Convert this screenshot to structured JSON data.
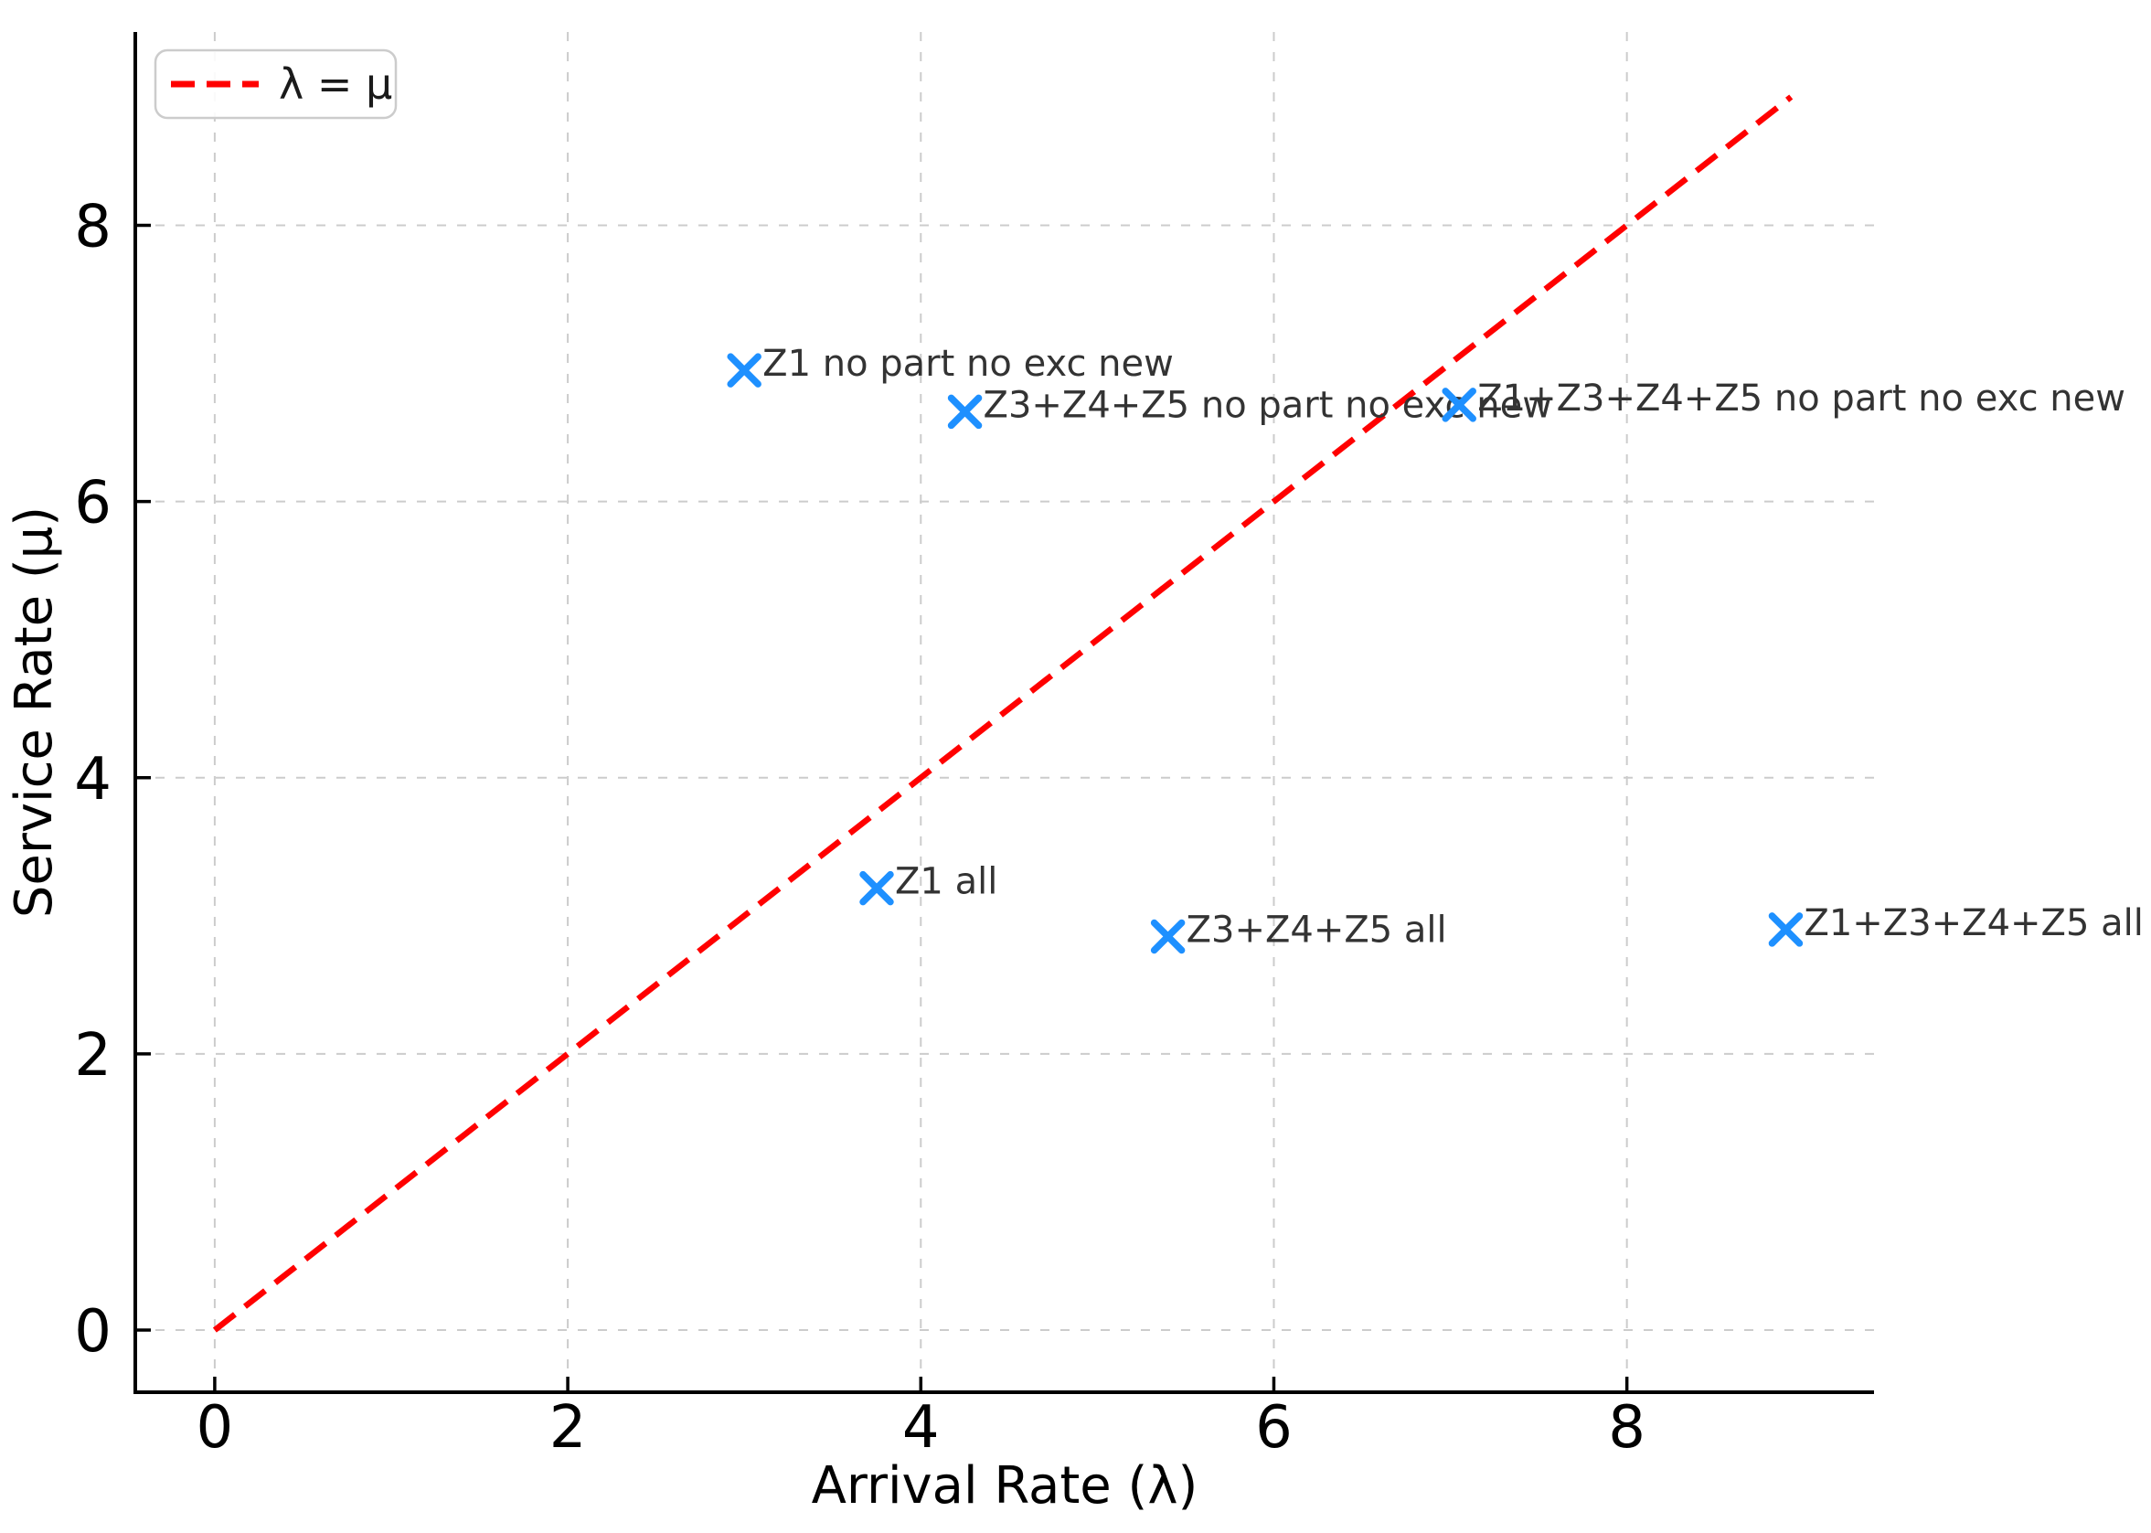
{
  "figure": {
    "background": "#ffffff"
  },
  "chart_data": {
    "type": "scatter",
    "title": "",
    "xlabel": "Arrival Rate (λ)",
    "ylabel": "Service Rate (μ)",
    "xlim": [
      -0.45,
      9.4
    ],
    "ylim": [
      -0.45,
      9.4
    ],
    "xticks": [
      0,
      2,
      4,
      6,
      8
    ],
    "yticks": [
      0,
      2,
      4,
      6,
      8
    ],
    "grid": true,
    "grid_style": "dashed",
    "legend_position": "upper left",
    "legend_entries": [
      {
        "label": "λ = μ",
        "style": "dashed-line",
        "color": "#ff0000"
      }
    ],
    "identity_line": {
      "label": "λ = μ",
      "x": [
        0,
        8.93
      ],
      "y": [
        0,
        8.93
      ],
      "style": "dashed",
      "color": "#ff0000"
    },
    "marker": {
      "shape": "x",
      "color": "#1e90ff"
    },
    "points": [
      {
        "label": "Z1 no part no exc new",
        "x": 3.0,
        "y": 6.95
      },
      {
        "label": "Z3+Z4+Z5 no part no exc new",
        "x": 4.25,
        "y": 6.65
      },
      {
        "label": "Z1+Z3+Z4+Z5 no part no exc new",
        "x": 7.05,
        "y": 6.7
      },
      {
        "label": "Z1 all",
        "x": 3.75,
        "y": 3.2
      },
      {
        "label": "Z3+Z4+Z5 all",
        "x": 5.4,
        "y": 2.85
      },
      {
        "label": "Z1+Z3+Z4+Z5 all",
        "x": 8.9,
        "y": 2.9
      }
    ],
    "colors": {
      "grid": "#cccccc",
      "axis": "#000000",
      "tick_label": "#000000",
      "annotation": "#333333",
      "legend_border": "#cccccc",
      "legend_background": "#ffffff"
    }
  }
}
